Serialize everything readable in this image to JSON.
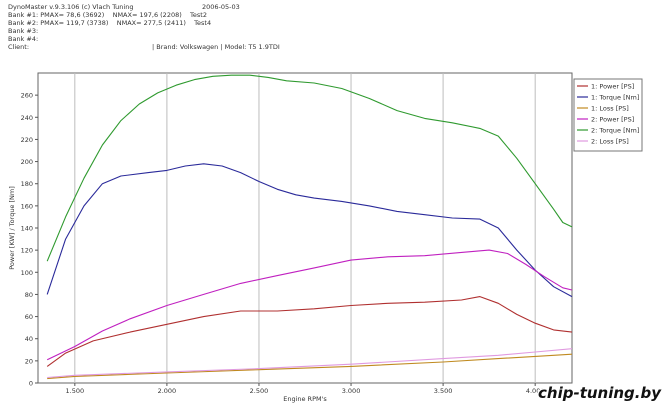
{
  "header": {
    "app_line": "DynoMaster v.9.3.106 (c) Vlach Tuning",
    "date": "2006-05-03",
    "bank1": "Bank #1: PMAX= 78,6 (3692)    NMAX= 197,6 (2208)    Test2",
    "bank2": "Bank #2: PMAX= 119,7 (3738)    NMAX= 277,5 (2411)    Test4",
    "bank3": "Bank #3:",
    "bank4": "Bank #4:",
    "client_label": "Client:",
    "brand_model": "| Brand: Volkswagen | Model: T5 1.9TDI"
  },
  "watermark": "chip-tuning.by",
  "chart_data": {
    "type": "line",
    "xlabel": "Engine RPM's",
    "ylabel": "Power [KW] / Torque [Nm]",
    "xlim": [
      1300,
      4200
    ],
    "ylim": [
      0,
      280
    ],
    "x_ticks": [
      1500,
      2000,
      2500,
      3000,
      3500,
      4000
    ],
    "x_tick_labels": [
      "1.500",
      "2.000",
      "2.500",
      "3.000",
      "3.500",
      "4.000"
    ],
    "y_ticks": [
      0,
      20,
      40,
      60,
      80,
      100,
      120,
      140,
      160,
      180,
      200,
      220,
      240,
      260
    ],
    "grid": "vertical",
    "legend_position": "right",
    "series": [
      {
        "name": "1: Power [PS]",
        "color": "#b03030",
        "points": [
          [
            1350,
            15
          ],
          [
            1450,
            27
          ],
          [
            1600,
            38
          ],
          [
            1800,
            46
          ],
          [
            2000,
            53
          ],
          [
            2200,
            60
          ],
          [
            2400,
            65
          ],
          [
            2600,
            65
          ],
          [
            2800,
            67
          ],
          [
            3000,
            70
          ],
          [
            3200,
            72
          ],
          [
            3400,
            73
          ],
          [
            3600,
            75
          ],
          [
            3700,
            78
          ],
          [
            3800,
            72
          ],
          [
            3900,
            62
          ],
          [
            4000,
            54
          ],
          [
            4100,
            48
          ],
          [
            4200,
            46
          ]
        ]
      },
      {
        "name": "1: Torque [Nm]",
        "color": "#2a2a9a",
        "points": [
          [
            1350,
            80
          ],
          [
            1450,
            130
          ],
          [
            1550,
            160
          ],
          [
            1650,
            180
          ],
          [
            1750,
            187
          ],
          [
            1900,
            190
          ],
          [
            2000,
            192
          ],
          [
            2100,
            196
          ],
          [
            2200,
            198
          ],
          [
            2300,
            196
          ],
          [
            2400,
            190
          ],
          [
            2500,
            182
          ],
          [
            2600,
            175
          ],
          [
            2700,
            170
          ],
          [
            2800,
            167
          ],
          [
            2950,
            164
          ],
          [
            3100,
            160
          ],
          [
            3250,
            155
          ],
          [
            3400,
            152
          ],
          [
            3550,
            149
          ],
          [
            3700,
            148
          ],
          [
            3800,
            140
          ],
          [
            3900,
            120
          ],
          [
            4000,
            102
          ],
          [
            4100,
            87
          ],
          [
            4200,
            78
          ]
        ]
      },
      {
        "name": "1: Loss [PS]",
        "color": "#c08a20",
        "points": [
          [
            1350,
            4
          ],
          [
            1500,
            6
          ],
          [
            2000,
            9
          ],
          [
            2500,
            12
          ],
          [
            3000,
            15
          ],
          [
            3500,
            19
          ],
          [
            3800,
            22
          ],
          [
            4000,
            24
          ],
          [
            4200,
            26
          ]
        ]
      },
      {
        "name": "2: Power [PS]",
        "color": "#c020c0",
        "points": [
          [
            1350,
            21
          ],
          [
            1500,
            33
          ],
          [
            1650,
            47
          ],
          [
            1800,
            58
          ],
          [
            2000,
            70
          ],
          [
            2200,
            80
          ],
          [
            2400,
            90
          ],
          [
            2600,
            97
          ],
          [
            2800,
            104
          ],
          [
            3000,
            111
          ],
          [
            3200,
            114
          ],
          [
            3400,
            115
          ],
          [
            3600,
            118
          ],
          [
            3750,
            120
          ],
          [
            3850,
            117
          ],
          [
            3950,
            107
          ],
          [
            4050,
            96
          ],
          [
            4150,
            86
          ],
          [
            4200,
            84
          ]
        ]
      },
      {
        "name": "2: Torque [Nm]",
        "color": "#2f9a2f",
        "points": [
          [
            1350,
            110
          ],
          [
            1450,
            150
          ],
          [
            1550,
            185
          ],
          [
            1650,
            215
          ],
          [
            1750,
            237
          ],
          [
            1850,
            252
          ],
          [
            1950,
            262
          ],
          [
            2050,
            269
          ],
          [
            2150,
            274
          ],
          [
            2250,
            277
          ],
          [
            2350,
            278
          ],
          [
            2450,
            278
          ],
          [
            2550,
            276
          ],
          [
            2650,
            273
          ],
          [
            2800,
            271
          ],
          [
            2950,
            266
          ],
          [
            3100,
            257
          ],
          [
            3250,
            246
          ],
          [
            3400,
            239
          ],
          [
            3550,
            235
          ],
          [
            3700,
            230
          ],
          [
            3800,
            223
          ],
          [
            3900,
            203
          ],
          [
            4000,
            180
          ],
          [
            4100,
            157
          ],
          [
            4150,
            145
          ],
          [
            4200,
            141
          ]
        ]
      },
      {
        "name": "2: Loss [PS]",
        "color": "#e09ae0",
        "points": [
          [
            1350,
            5
          ],
          [
            1500,
            7
          ],
          [
            2000,
            10
          ],
          [
            2500,
            13
          ],
          [
            3000,
            17
          ],
          [
            3500,
            22
          ],
          [
            3800,
            25
          ],
          [
            4000,
            28
          ],
          [
            4200,
            31
          ]
        ]
      }
    ]
  }
}
